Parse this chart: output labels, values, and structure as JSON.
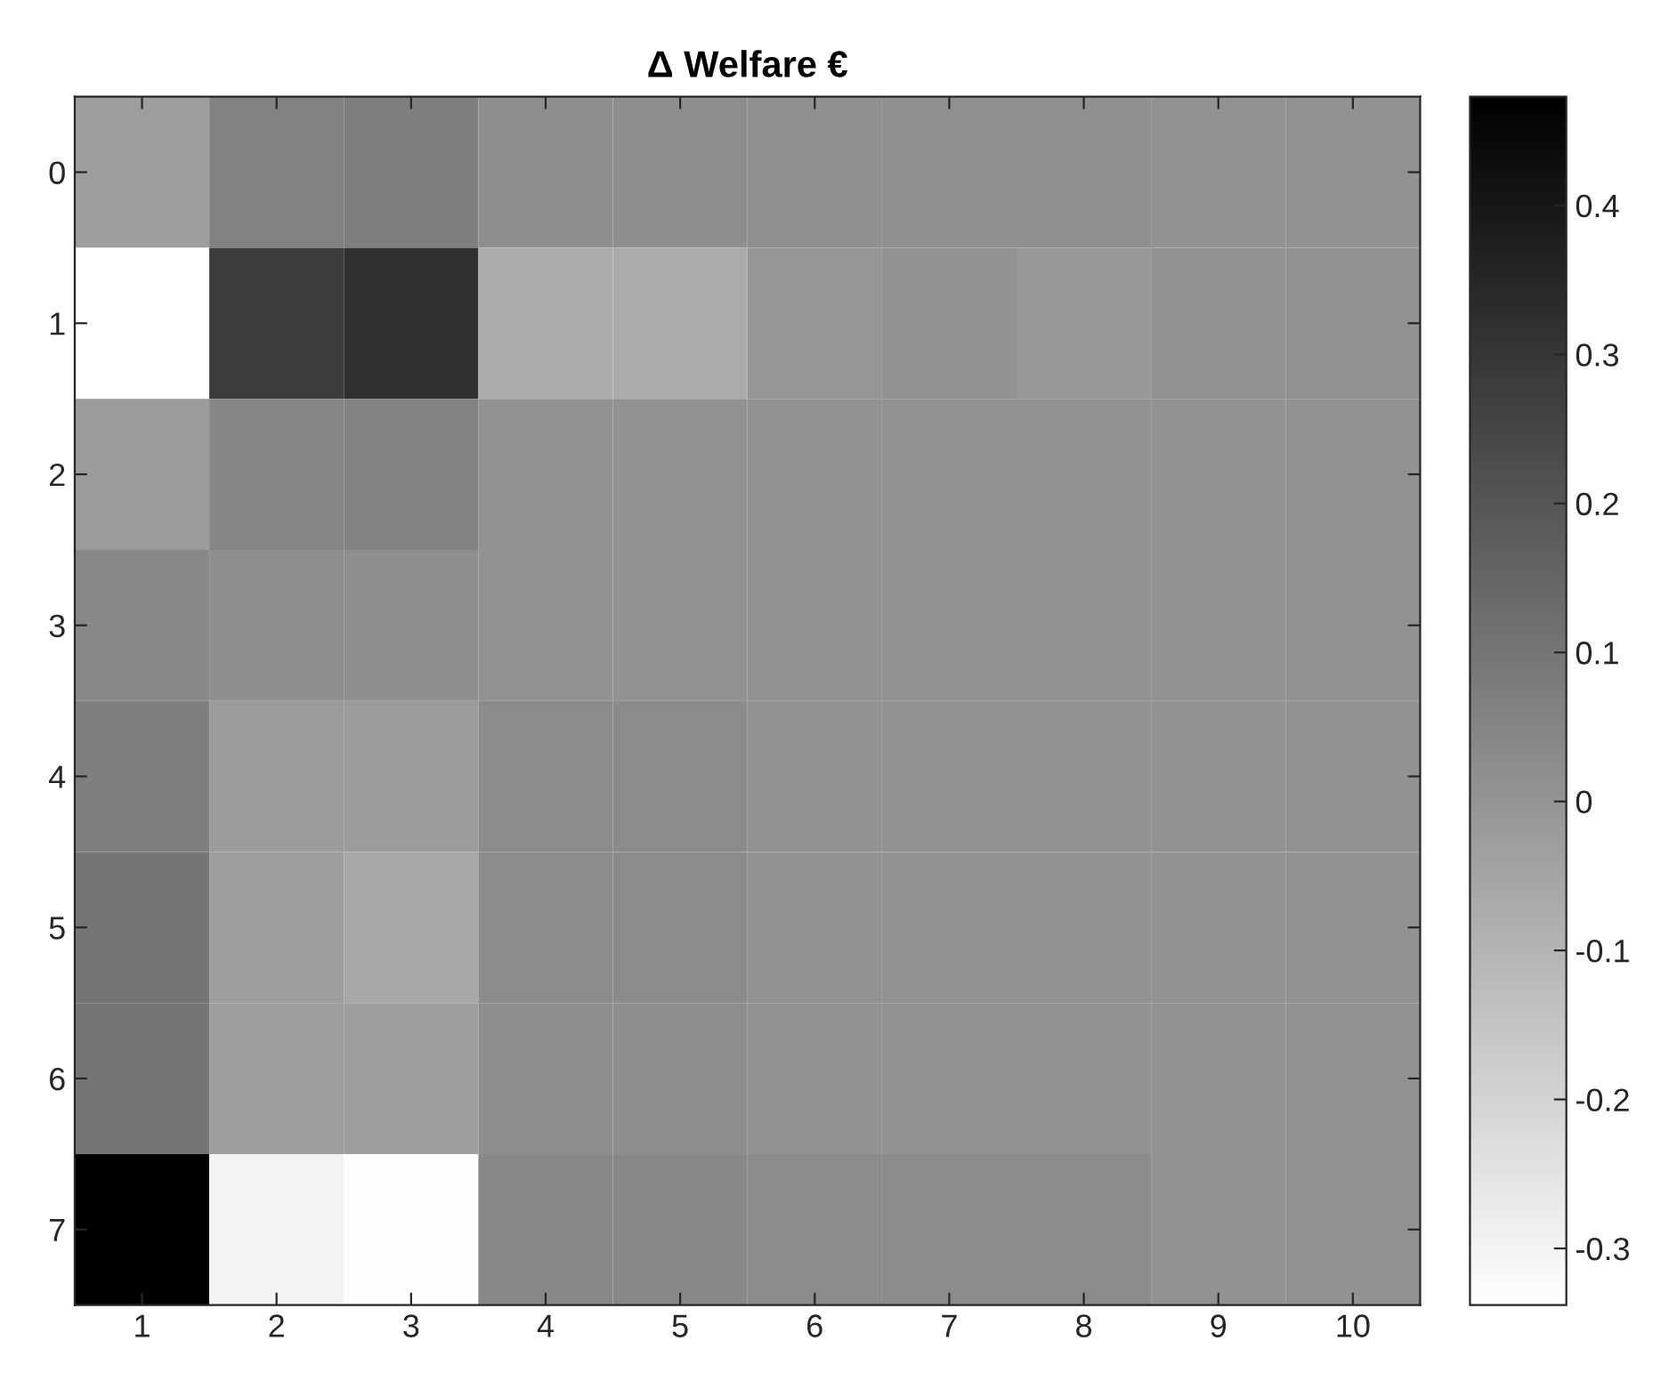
{
  "chart_data": {
    "type": "heatmap",
    "title": "Δ Welfare €",
    "categories": [
      "1",
      "2",
      "3",
      "4",
      "5",
      "6",
      "7",
      "8",
      "9",
      "10"
    ],
    "y_categories": [
      "0",
      "1",
      "2",
      "3",
      "4",
      "5",
      "6",
      "7"
    ],
    "cells": [
      [
        -0.03,
        0.06,
        0.07,
        0.02,
        0.02,
        0.015,
        0.015,
        0.015,
        0.01,
        0.01
      ],
      [
        -0.34,
        0.28,
        0.32,
        -0.07,
        -0.07,
        0.0,
        0.01,
        -0.01,
        0.01,
        0.01
      ],
      [
        -0.02,
        0.05,
        0.06,
        0.01,
        0.01,
        0.01,
        0.01,
        0.01,
        0.01,
        0.01
      ],
      [
        0.04,
        0.02,
        0.02,
        0.01,
        0.01,
        0.01,
        0.01,
        0.01,
        0.01,
        0.01
      ],
      [
        0.07,
        -0.02,
        -0.02,
        0.03,
        0.03,
        0.01,
        0.01,
        0.01,
        0.01,
        0.01
      ],
      [
        0.1,
        -0.03,
        -0.06,
        0.03,
        0.03,
        0.01,
        0.01,
        0.01,
        0.01,
        0.01
      ],
      [
        0.1,
        -0.03,
        -0.03,
        0.02,
        0.02,
        0.01,
        0.01,
        0.01,
        0.01,
        0.01
      ],
      [
        0.47,
        -0.3,
        -0.33,
        0.04,
        0.04,
        0.03,
        0.03,
        0.03,
        0.01,
        0.01
      ]
    ],
    "clim": [
      -0.338,
      0.473
    ],
    "cticks": [
      -0.3,
      -0.2,
      -0.1,
      0,
      0.1,
      0.2,
      0.3,
      0.4
    ]
  }
}
